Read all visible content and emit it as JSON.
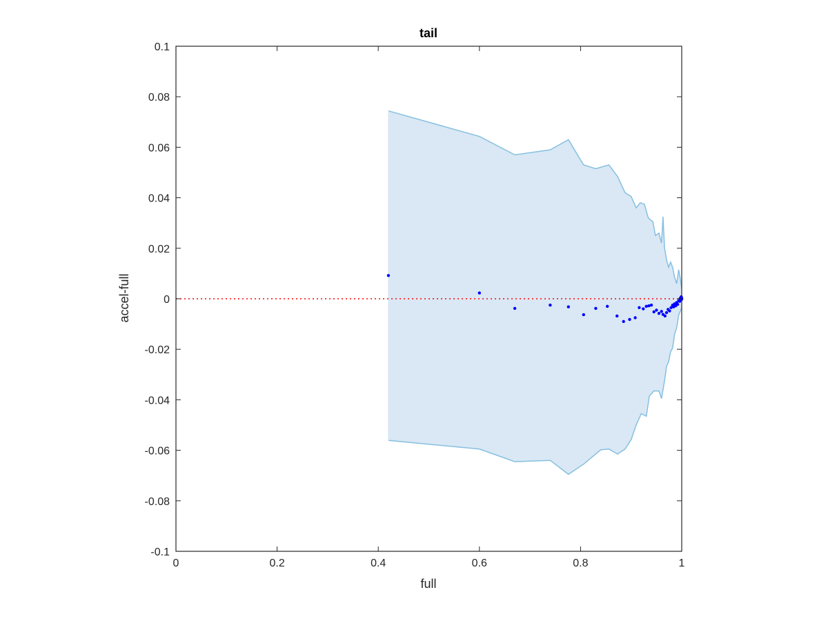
{
  "chart_data": {
    "type": "scatter",
    "title": "tail",
    "xlabel": "full",
    "ylabel": "accel-full",
    "xlim": [
      0,
      1
    ],
    "ylim": [
      -0.1,
      0.1
    ],
    "xticks": [
      0,
      0.2,
      0.4,
      0.6,
      0.8,
      1
    ],
    "xtick_labels": [
      "0",
      "0.2",
      "0.4",
      "0.6",
      "0.8",
      "1"
    ],
    "yticks": [
      0.1,
      0.08,
      0.06,
      0.04,
      0.02,
      0,
      -0.02,
      -0.04,
      -0.06,
      -0.08,
      -0.1
    ],
    "ytick_labels": [
      "0.1",
      "0.08",
      "0.06",
      "0.04",
      "0.02",
      "0",
      "-0.02",
      "-0.04",
      "-0.06",
      "-0.08",
      "-0.1"
    ],
    "grid": false,
    "reference_line": {
      "y": 0,
      "color": "#ff0000",
      "style": "dotted"
    },
    "band": {
      "fill_color": "#d9e8f4",
      "edge_color": "#86bfe0",
      "upper": [
        [
          0.42,
          0.0744
        ],
        [
          0.6,
          0.0643
        ],
        [
          0.67,
          0.057
        ],
        [
          0.74,
          0.059
        ],
        [
          0.776,
          0.063
        ],
        [
          0.806,
          0.053
        ],
        [
          0.83,
          0.0515
        ],
        [
          0.856,
          0.053
        ],
        [
          0.873,
          0.0485
        ],
        [
          0.888,
          0.042
        ],
        [
          0.9,
          0.0405
        ],
        [
          0.91,
          0.036
        ],
        [
          0.918,
          0.038
        ],
        [
          0.926,
          0.0375
        ],
        [
          0.934,
          0.032
        ],
        [
          0.943,
          0.0305
        ],
        [
          0.948,
          0.025
        ],
        [
          0.955,
          0.026
        ],
        [
          0.96,
          0.022
        ],
        [
          0.963,
          0.0325
        ],
        [
          0.966,
          0.02
        ],
        [
          0.97,
          0.0155
        ],
        [
          0.974,
          0.0125
        ],
        [
          0.978,
          0.0145
        ],
        [
          0.982,
          0.0125
        ],
        [
          0.986,
          0.0085
        ],
        [
          0.99,
          0.006
        ],
        [
          0.994,
          0.0115
        ],
        [
          0.998,
          0.007
        ],
        [
          1.0,
          0.004
        ]
      ],
      "lower": [
        [
          0.42,
          -0.0561
        ],
        [
          0.6,
          -0.0595
        ],
        [
          0.67,
          -0.0645
        ],
        [
          0.74,
          -0.064
        ],
        [
          0.776,
          -0.0695
        ],
        [
          0.806,
          -0.0655
        ],
        [
          0.84,
          -0.0598
        ],
        [
          0.856,
          -0.0595
        ],
        [
          0.873,
          -0.0615
        ],
        [
          0.888,
          -0.0595
        ],
        [
          0.9,
          -0.0558
        ],
        [
          0.91,
          -0.05
        ],
        [
          0.92,
          -0.0455
        ],
        [
          0.93,
          -0.0465
        ],
        [
          0.936,
          -0.0385
        ],
        [
          0.945,
          -0.0365
        ],
        [
          0.955,
          -0.0365
        ],
        [
          0.96,
          -0.0395
        ],
        [
          0.966,
          -0.0325
        ],
        [
          0.97,
          -0.0268
        ],
        [
          0.974,
          -0.025
        ],
        [
          0.978,
          -0.021
        ],
        [
          0.982,
          -0.0195
        ],
        [
          0.986,
          -0.014
        ],
        [
          0.99,
          -0.0115
        ],
        [
          0.994,
          -0.0065
        ],
        [
          0.998,
          -0.0045
        ],
        [
          1.0,
          -0.0035
        ]
      ]
    },
    "series": [
      {
        "color": "#0000ff",
        "points": [
          [
            0.42,
            0.0092
          ],
          [
            0.6,
            0.0023
          ],
          [
            0.67,
            -0.0038
          ],
          [
            0.74,
            -0.0025
          ],
          [
            0.776,
            -0.0032
          ],
          [
            0.806,
            -0.0063
          ],
          [
            0.83,
            -0.0038
          ],
          [
            0.853,
            -0.003
          ],
          [
            0.872,
            -0.0068
          ],
          [
            0.885,
            -0.009
          ],
          [
            0.897,
            -0.0082
          ],
          [
            0.908,
            -0.0075
          ],
          [
            0.916,
            -0.0035
          ],
          [
            0.924,
            -0.004
          ],
          [
            0.93,
            -0.003
          ],
          [
            0.935,
            -0.0028
          ],
          [
            0.94,
            -0.0025
          ],
          [
            0.945,
            -0.0052
          ],
          [
            0.95,
            -0.0045
          ],
          [
            0.955,
            -0.0058
          ],
          [
            0.96,
            -0.005
          ],
          [
            0.963,
            -0.0062
          ],
          [
            0.967,
            -0.0068
          ],
          [
            0.97,
            -0.0055
          ],
          [
            0.973,
            -0.0042
          ],
          [
            0.976,
            -0.0048
          ],
          [
            0.979,
            -0.0035
          ],
          [
            0.982,
            -0.0025
          ],
          [
            0.984,
            -0.0032
          ],
          [
            0.986,
            -0.002
          ],
          [
            0.988,
            -0.0028
          ],
          [
            0.99,
            -0.0015
          ],
          [
            0.992,
            -0.0022
          ],
          [
            0.994,
            -0.0008
          ],
          [
            0.996,
            -0.001
          ],
          [
            0.997,
            0.0002
          ],
          [
            0.998,
            -0.0005
          ],
          [
            0.999,
            0.0008
          ],
          [
            1.0,
            0.0003
          ],
          [
            1.0,
            -0.0002
          ]
        ]
      }
    ]
  }
}
